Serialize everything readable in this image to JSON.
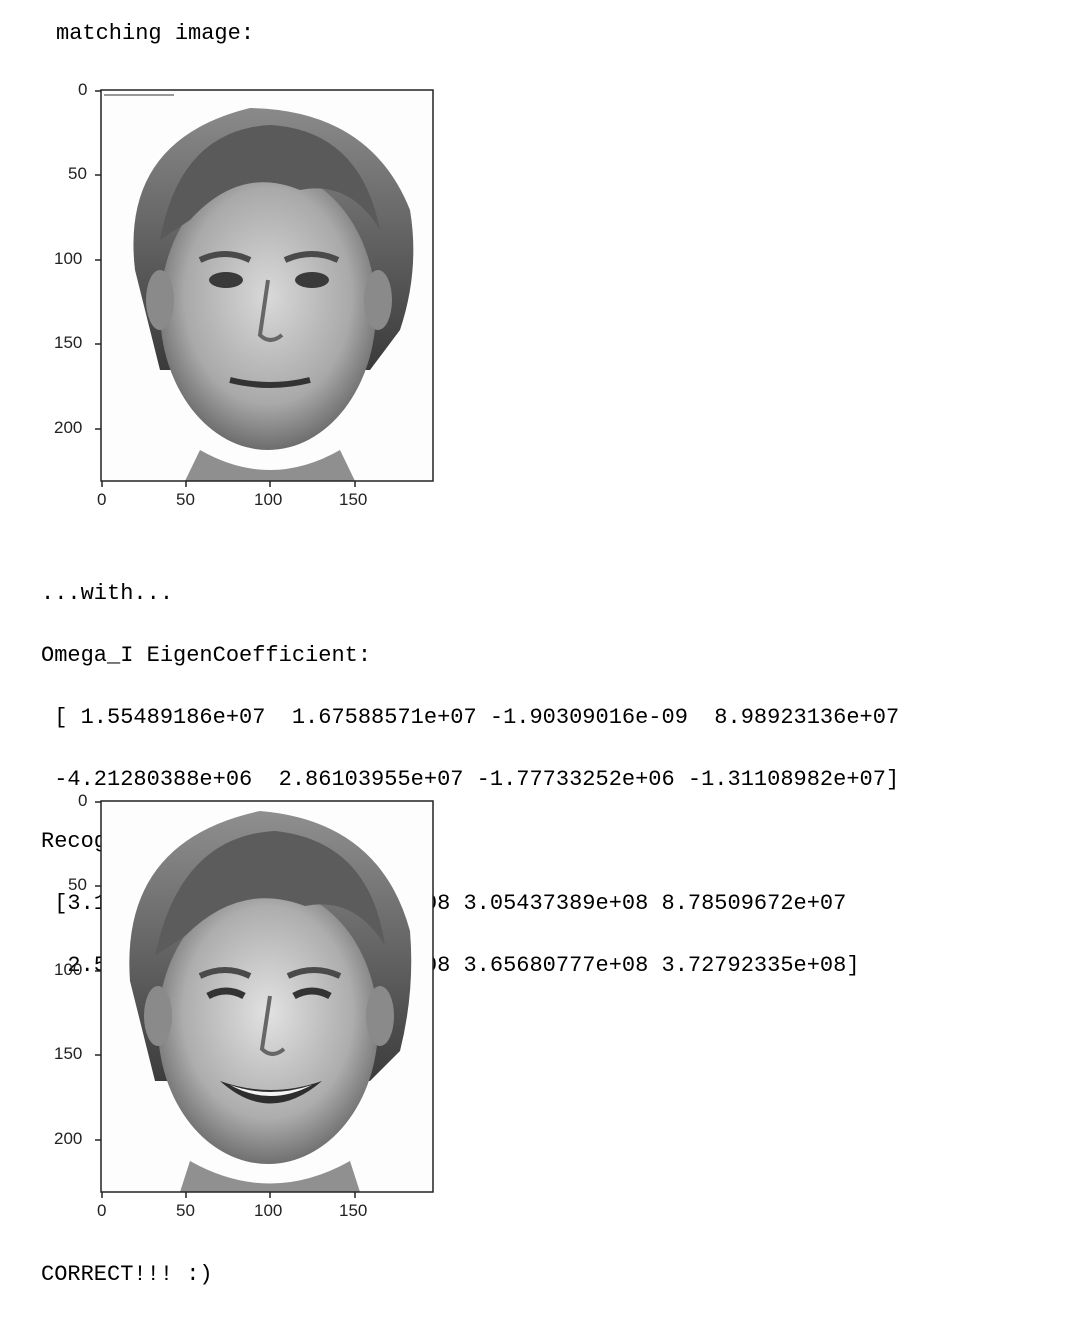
{
  "output": {
    "header": "matching image:",
    "with_line": "...with...",
    "omega_label": "Omega_I EigenCoefficient:",
    "omega_row1": " [ 1.55489186e+07  1.67588571e+07 -1.90309016e-09  8.98923136e+07",
    "omega_row2": " -4.21280388e+06  2.86103955e+07 -1.77733252e+06 -1.31108982e+07]",
    "distances_label": "Recognition Distances:",
    "distances_row1": " [3.19369787e+08 4.52997908e+08 3.05437389e+08 8.78509672e+07",
    "distances_row2": "  2.53480767e+08 5.05990030e+08 3.65680777e+08 3.72792335e+08]",
    "footer": "CORRECT!!! :)"
  },
  "plots": [
    {
      "x_ticks": [
        "0",
        "50",
        "100",
        "150"
      ],
      "y_ticks": [
        "0",
        "50",
        "100",
        "150",
        "200"
      ],
      "image": "grayscale-face-neutral"
    },
    {
      "x_ticks": [
        "0",
        "50",
        "100",
        "150"
      ],
      "y_ticks": [
        "0",
        "50",
        "100",
        "150",
        "200"
      ],
      "image": "grayscale-face-smiling"
    }
  ]
}
